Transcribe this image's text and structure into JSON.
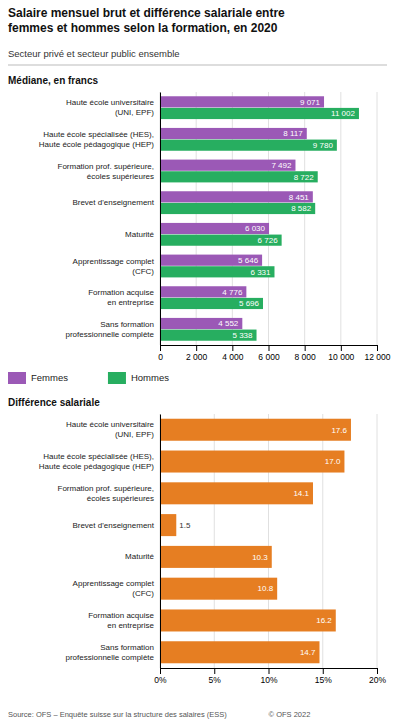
{
  "title": "Salaire mensuel brut et différence salariale entre\nfemmes et hommes selon la formation, en 2020",
  "subtitle": "Secteur privé et secteur public ensemble",
  "annotations": [
    "Source: OFS – Enquête suisse sur la structure des salaires (ESS)                    © OFS 2022"
  ],
  "chart_data": [
    {
      "type": "bar",
      "orientation": "horizontal",
      "title": "Médiane, en francs",
      "categories": [
        "Haute école universitaire\n(UNI, EPF)",
        "Haute école spécialisée (HES),\nHaute école pédagogique (HEP)",
        "Formation prof. supérieure,\nécoles supérieures",
        "Brevet d'enseignement",
        "Maturité",
        "Apprentissage complet\n(CFC)",
        "Formation acquise\nen entreprise",
        "Sans formation\nprofessionnelle complète"
      ],
      "series": [
        {
          "name": "Femmes",
          "color": "#9B59B6",
          "values": [
            9071,
            8117,
            7492,
            8451,
            6030,
            5646,
            4776,
            4552
          ],
          "value_labels": [
            "9 071",
            "8 117",
            "7 492",
            "8 451",
            "6 030",
            "5 646",
            "4 776",
            "4 552"
          ]
        },
        {
          "name": "Hommes",
          "color": "#27AE60",
          "values": [
            11002,
            9780,
            8722,
            8582,
            6726,
            6331,
            5696,
            5338
          ],
          "value_labels": [
            "11 002",
            "9 780",
            "8 722",
            "8 582",
            "6 726",
            "6 331",
            "5 696",
            "5 338"
          ]
        }
      ],
      "xlim": [
        0,
        12000
      ],
      "xticks": [
        0,
        {
          "value": 2000,
          "label": "2 000"
        },
        {
          "value": 4000,
          "label": "4 000"
        },
        {
          "value": 6000,
          "label": "6 000"
        },
        {
          "value": 8000,
          "label": "8 000"
        },
        {
          "value": 10000,
          "label": "10 000"
        },
        {
          "value": 12000,
          "label": "12 000"
        }
      ],
      "grid": true,
      "data_labels": true,
      "legend": "bottom"
    },
    {
      "type": "bar",
      "orientation": "horizontal",
      "title": "Différence salariale",
      "categories": [
        "Haute école universitaire\n(UNI, EPF)",
        "Haute école spécialisée (HES),\nHaute école pédagogique (HEP)",
        "Formation prof. supérieure,\nécoles supérieures",
        "Brevet d'enseignement",
        "Maturité",
        "Apprentissage complet\n(CFC)",
        "Formation acquise\nen entreprise",
        "Sans formation\nprofessionnelle complète"
      ],
      "values": [
        17.6,
        17.0,
        14.1,
        1.5,
        10.3,
        10.8,
        16.2,
        14.7
      ],
      "value_labels": [
        "17.6",
        "17.0",
        "14.1",
        "1.5",
        "10.3",
        "10.8",
        "16.2",
        "14.7"
      ],
      "color": "#E67E22",
      "xlim": [
        0,
        20
      ],
      "xticks": [
        {
          "value": 0,
          "label": "0%"
        },
        {
          "value": 5,
          "label": "5%"
        },
        {
          "value": 10,
          "label": "10%"
        },
        {
          "value": 15,
          "label": "15%"
        },
        {
          "value": 20,
          "label": "20%"
        }
      ],
      "grid": true,
      "data_labels": true
    }
  ]
}
